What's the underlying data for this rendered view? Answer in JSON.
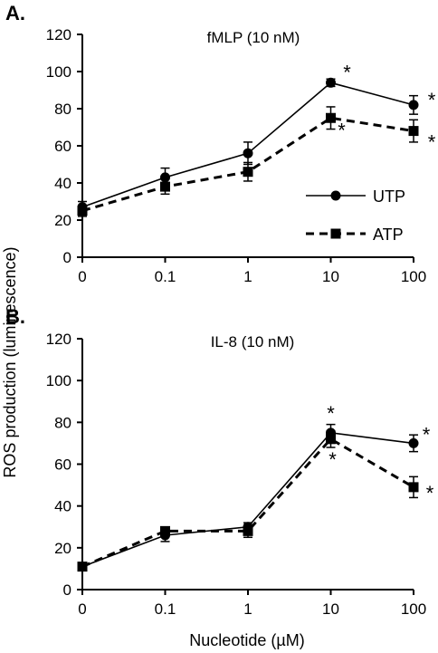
{
  "figure": {
    "ylabel": "ROS production (luminescence)",
    "xlabel": "Nucleotide (µM)"
  },
  "legend": [
    {
      "name": "UTP",
      "marker": "circle",
      "dash": "solid"
    },
    {
      "name": "ATP",
      "marker": "square",
      "dash": "dashed"
    }
  ],
  "chart_data": [
    {
      "type": "line",
      "panel": "A.",
      "title": "fMLP (10 nM)",
      "categories": [
        "0",
        "0.1",
        "1",
        "10",
        "100"
      ],
      "yticks": [
        "0",
        "20",
        "40",
        "60",
        "80",
        "100",
        "120"
      ],
      "ylim": [
        0,
        120
      ],
      "series": [
        {
          "name": "UTP",
          "values": [
            27,
            43,
            56,
            94,
            82
          ],
          "errors": [
            3,
            5,
            6,
            2,
            5
          ],
          "significant": [
            false,
            false,
            false,
            true,
            true
          ]
        },
        {
          "name": "ATP",
          "values": [
            25,
            38,
            46,
            75,
            68
          ],
          "errors": [
            3,
            4,
            5,
            6,
            6
          ],
          "significant": [
            false,
            false,
            false,
            true,
            true
          ]
        }
      ]
    },
    {
      "type": "line",
      "panel": "B.",
      "title": "IL-8 (10 nM)",
      "categories": [
        "0",
        "0.1",
        "1",
        "10",
        "100"
      ],
      "yticks": [
        "0",
        "20",
        "40",
        "60",
        "80",
        "100",
        "120"
      ],
      "ylim": [
        0,
        120
      ],
      "series": [
        {
          "name": "UTP",
          "values": [
            11,
            26,
            30,
            75,
            70
          ],
          "errors": [
            1,
            3,
            2,
            4,
            4
          ],
          "significant": [
            false,
            false,
            false,
            true,
            true
          ]
        },
        {
          "name": "ATP",
          "values": [
            11,
            28,
            28,
            72,
            49
          ],
          "errors": [
            1,
            2,
            3,
            4,
            5
          ],
          "significant": [
            false,
            false,
            false,
            true,
            true
          ]
        }
      ]
    }
  ],
  "significance_marker": "*"
}
